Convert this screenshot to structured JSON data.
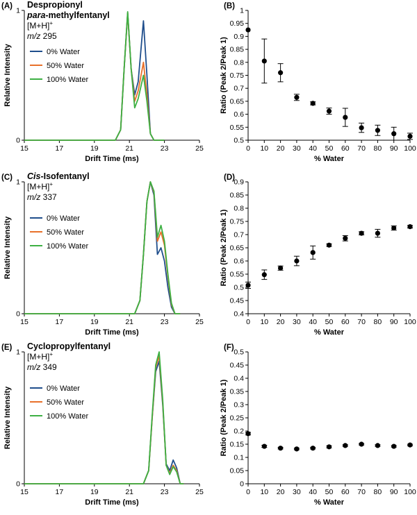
{
  "colors": {
    "water0": "#1f4e8c",
    "water50": "#e8702a",
    "water100": "#3db043",
    "axis": "#000000",
    "marker": "#000000"
  },
  "chart_data": [
    {
      "panel": "(A)",
      "type": "line",
      "title_line1": "Despropionyl",
      "title_bold2": "para",
      "title_rest2": "-methylfentanyl",
      "ion_main": "[M+H]",
      "ion_sup": "+",
      "mz_label": "m/z",
      "mz_value": "295",
      "xlabel": "Drift Time (ms)",
      "ylabel": "Relative Intensity",
      "xlim": [
        15,
        25
      ],
      "ylim": [
        0,
        1
      ],
      "xticks": [
        "15",
        "17",
        "19",
        "21",
        "23",
        "25"
      ],
      "yticks": [
        "0",
        "1"
      ],
      "series": [
        {
          "name": "0% Water",
          "color": "#1f4e8c",
          "x": [
            20.2,
            20.5,
            20.7,
            20.9,
            21.1,
            21.3,
            21.5,
            21.8,
            22.0,
            22.2,
            22.4,
            22.6,
            23.0
          ],
          "y": [
            0,
            0.08,
            0.55,
            0.98,
            0.55,
            0.35,
            0.45,
            0.92,
            0.5,
            0.05,
            0,
            0,
            0
          ]
        },
        {
          "name": "50% Water",
          "color": "#e8702a",
          "x": [
            20.2,
            20.5,
            20.7,
            20.9,
            21.1,
            21.3,
            21.5,
            21.8,
            22.0,
            22.2,
            22.4,
            22.6,
            23.0
          ],
          "y": [
            0,
            0.08,
            0.55,
            0.98,
            0.55,
            0.3,
            0.38,
            0.6,
            0.35,
            0.05,
            0,
            0,
            0
          ]
        },
        {
          "name": "100% Water",
          "color": "#3db043",
          "x": [
            20.2,
            20.5,
            20.7,
            20.9,
            21.1,
            21.3,
            21.5,
            21.8,
            22.0,
            22.2,
            22.4,
            22.6,
            23.0
          ],
          "y": [
            0,
            0.08,
            0.55,
            0.99,
            0.55,
            0.25,
            0.32,
            0.5,
            0.3,
            0.05,
            0,
            0,
            0
          ]
        }
      ]
    },
    {
      "panel": "(B)",
      "type": "scatter",
      "xlabel": "% Water",
      "ylabel": "Ratio (Peak 2/Peak 1)",
      "xlim": [
        0,
        100
      ],
      "ylim": [
        0.5,
        1
      ],
      "xticks": [
        "0",
        "10",
        "20",
        "30",
        "40",
        "50",
        "60",
        "70",
        "80",
        "90",
        "100"
      ],
      "yticks": [
        "0.5",
        "0.55",
        "0.6",
        "0.65",
        "0.7",
        "0.75",
        "0.8",
        "0.85",
        "0.9",
        "0.95",
        "1"
      ],
      "x": [
        0,
        10,
        20,
        30,
        40,
        50,
        60,
        70,
        80,
        90,
        100
      ],
      "y": [
        0.925,
        0.805,
        0.76,
        0.665,
        0.642,
        0.612,
        0.588,
        0.548,
        0.538,
        0.525,
        0.515
      ],
      "err": [
        0,
        0.085,
        0.035,
        0.012,
        0.006,
        0.012,
        0.035,
        0.018,
        0.02,
        0.025,
        0.012
      ]
    },
    {
      "panel": "(C)",
      "type": "line",
      "title_italic1": "Cis",
      "title_rest1": "-Isofentanyl",
      "ion_main": "[M+H]",
      "ion_sup": "+",
      "mz_label": "m/z",
      "mz_value": "337",
      "xlabel": "Drift Time (ms)",
      "ylabel": "Relative Intensity",
      "xlim": [
        15,
        25
      ],
      "ylim": [
        0,
        1
      ],
      "xticks": [
        "15",
        "17",
        "19",
        "21",
        "23",
        "25"
      ],
      "yticks": [
        "0",
        "1"
      ],
      "series": [
        {
          "name": "0% Water",
          "color": "#1f4e8c",
          "x": [
            21.3,
            21.6,
            21.8,
            22.0,
            22.2,
            22.4,
            22.6,
            22.8,
            23.0,
            23.2,
            23.4,
            23.6,
            23.9
          ],
          "y": [
            0,
            0.1,
            0.45,
            0.85,
            1.0,
            0.9,
            0.45,
            0.5,
            0.4,
            0.2,
            0.05,
            0,
            0
          ]
        },
        {
          "name": "50% Water",
          "color": "#e8702a",
          "x": [
            21.3,
            21.6,
            21.8,
            22.0,
            22.2,
            22.4,
            22.6,
            22.8,
            23.0,
            23.2,
            23.4,
            23.6,
            23.9
          ],
          "y": [
            0,
            0.1,
            0.45,
            0.85,
            1.0,
            0.92,
            0.55,
            0.62,
            0.52,
            0.28,
            0.07,
            0,
            0
          ]
        },
        {
          "name": "100% Water",
          "color": "#3db043",
          "x": [
            21.3,
            21.6,
            21.8,
            22.0,
            22.2,
            22.4,
            22.6,
            22.8,
            23.0,
            23.2,
            23.4,
            23.6,
            23.9
          ],
          "y": [
            0,
            0.1,
            0.45,
            0.85,
            1.0,
            0.93,
            0.58,
            0.67,
            0.55,
            0.3,
            0.08,
            0,
            0
          ]
        }
      ]
    },
    {
      "panel": "(D)",
      "type": "scatter",
      "xlabel": "% Water",
      "ylabel": "Ratio (Peak 2/Peak 1)",
      "xlim": [
        0,
        100
      ],
      "ylim": [
        0.4,
        0.9
      ],
      "xticks": [
        "0",
        "10",
        "20",
        "30",
        "40",
        "50",
        "60",
        "70",
        "80",
        "90",
        "100"
      ],
      "yticks": [
        "0.4",
        "0.45",
        "0.5",
        "0.55",
        "0.6",
        "0.65",
        "0.7",
        "0.75",
        "0.8",
        "0.85",
        "0.9"
      ],
      "x": [
        0,
        10,
        20,
        30,
        40,
        50,
        60,
        70,
        80,
        90,
        100
      ],
      "y": [
        0.508,
        0.548,
        0.573,
        0.6,
        0.632,
        0.66,
        0.686,
        0.705,
        0.705,
        0.725,
        0.73
      ],
      "err": [
        0.012,
        0.018,
        0.008,
        0.018,
        0.025,
        0.005,
        0.01,
        0.006,
        0.015,
        0.008,
        0.005
      ]
    },
    {
      "panel": "(E)",
      "type": "line",
      "title_line1": "Cyclopropylfentanyl",
      "ion_main": "[M+H]",
      "ion_sup": "+",
      "mz_label": "m/z",
      "mz_value": "349",
      "xlabel": "Drift Time (ms)",
      "ylabel": "Relative Intensity",
      "xlim": [
        15,
        25
      ],
      "ylim": [
        0,
        1
      ],
      "xticks": [
        "15",
        "17",
        "19",
        "21",
        "23",
        "25"
      ],
      "yticks": [
        "0",
        "1"
      ],
      "series": [
        {
          "name": "0% Water",
          "color": "#1f4e8c",
          "x": [
            21.8,
            22.1,
            22.3,
            22.5,
            22.7,
            22.9,
            23.1,
            23.3,
            23.5,
            23.7,
            23.9,
            24.1
          ],
          "y": [
            0,
            0.1,
            0.5,
            0.85,
            0.93,
            0.6,
            0.15,
            0.1,
            0.18,
            0.12,
            0,
            0
          ]
        },
        {
          "name": "50% Water",
          "color": "#e8702a",
          "x": [
            21.8,
            22.1,
            22.3,
            22.5,
            22.7,
            22.9,
            23.1,
            23.3,
            23.5,
            23.7,
            23.9,
            24.1
          ],
          "y": [
            0,
            0.1,
            0.5,
            0.88,
            0.97,
            0.62,
            0.14,
            0.08,
            0.14,
            0.1,
            0,
            0
          ]
        },
        {
          "name": "100% Water",
          "color": "#3db043",
          "x": [
            21.8,
            22.1,
            22.3,
            22.5,
            22.7,
            22.9,
            23.1,
            23.3,
            23.5,
            23.7,
            23.9,
            24.1
          ],
          "y": [
            0,
            0.1,
            0.52,
            0.9,
            1.0,
            0.64,
            0.14,
            0.07,
            0.13,
            0.09,
            0,
            0
          ]
        }
      ]
    },
    {
      "panel": "(F)",
      "type": "scatter",
      "xlabel": "% Water",
      "ylabel": "Ratio (Peak 2/Peak 1)",
      "xlim": [
        0,
        100
      ],
      "ylim": [
        0,
        0.5
      ],
      "xticks": [
        "0",
        "10",
        "20",
        "30",
        "40",
        "50",
        "60",
        "70",
        "80",
        "90",
        "100"
      ],
      "yticks": [
        "0",
        "0.05",
        "0.1",
        "0.15",
        "0.2",
        "0.25",
        "0.3",
        "0.35",
        "0.4",
        "0.45",
        "0.5"
      ],
      "x": [
        0,
        10,
        20,
        30,
        40,
        50,
        60,
        70,
        80,
        90,
        100
      ],
      "y": [
        0.19,
        0.142,
        0.135,
        0.132,
        0.135,
        0.14,
        0.145,
        0.15,
        0.145,
        0.142,
        0.147
      ],
      "err": [
        0.005,
        0.004,
        0.003,
        0.003,
        0.003,
        0.004,
        0.003,
        0.003,
        0.003,
        0.003,
        0.003
      ]
    }
  ]
}
